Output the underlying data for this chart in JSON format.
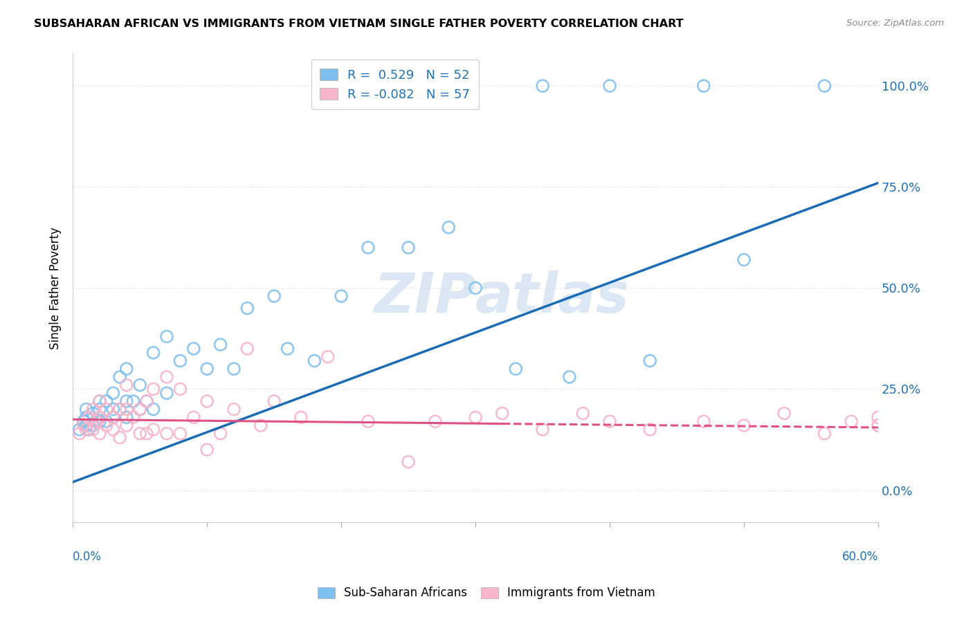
{
  "title": "SUBSAHARAN AFRICAN VS IMMIGRANTS FROM VIETNAM SINGLE FATHER POVERTY CORRELATION CHART",
  "source": "Source: ZipAtlas.com",
  "ylabel": "Single Father Poverty",
  "yticks": [
    "0.0%",
    "25.0%",
    "50.0%",
    "75.0%",
    "100.0%"
  ],
  "ytick_vals": [
    0.0,
    0.25,
    0.5,
    0.75,
    1.0
  ],
  "xmin": 0.0,
  "xmax": 0.6,
  "ymin": -0.08,
  "ymax": 1.08,
  "legend_entries": [
    {
      "label": "R =  0.529   N = 52",
      "color": "#7fbfef"
    },
    {
      "label": "R = -0.082   N = 57",
      "color": "#f8b4c8"
    }
  ],
  "legend_bottom": [
    "Sub-Saharan Africans",
    "Immigrants from Vietnam"
  ],
  "blue_color": "#7fbfef",
  "pink_color": "#f8b4c8",
  "blue_line_color": "#1a6bb5",
  "pink_line_color": "#e05080",
  "watermark_color": "#c5d8ee",
  "blue_scatter_x": [
    0.005,
    0.008,
    0.01,
    0.01,
    0.01,
    0.012,
    0.015,
    0.015,
    0.018,
    0.02,
    0.02,
    0.02,
    0.025,
    0.025,
    0.03,
    0.03,
    0.03,
    0.035,
    0.035,
    0.04,
    0.04,
    0.04,
    0.045,
    0.05,
    0.05,
    0.055,
    0.06,
    0.06,
    0.07,
    0.07,
    0.08,
    0.09,
    0.1,
    0.11,
    0.12,
    0.13,
    0.15,
    0.16,
    0.18,
    0.2,
    0.22,
    0.25,
    0.28,
    0.3,
    0.33,
    0.35,
    0.37,
    0.4,
    0.43,
    0.47,
    0.5,
    0.56
  ],
  "blue_scatter_y": [
    0.15,
    0.17,
    0.16,
    0.18,
    0.2,
    0.15,
    0.16,
    0.19,
    0.17,
    0.17,
    0.2,
    0.22,
    0.17,
    0.22,
    0.18,
    0.2,
    0.24,
    0.2,
    0.28,
    0.18,
    0.22,
    0.3,
    0.22,
    0.2,
    0.26,
    0.22,
    0.2,
    0.34,
    0.24,
    0.38,
    0.32,
    0.35,
    0.3,
    0.36,
    0.3,
    0.45,
    0.48,
    0.35,
    0.32,
    0.48,
    0.6,
    0.6,
    0.65,
    0.5,
    0.3,
    1.0,
    0.28,
    1.0,
    0.32,
    1.0,
    0.57,
    1.0
  ],
  "pink_scatter_x": [
    0.005,
    0.008,
    0.01,
    0.012,
    0.015,
    0.015,
    0.018,
    0.02,
    0.02,
    0.02,
    0.025,
    0.025,
    0.03,
    0.03,
    0.035,
    0.035,
    0.04,
    0.04,
    0.04,
    0.045,
    0.05,
    0.05,
    0.055,
    0.055,
    0.06,
    0.06,
    0.07,
    0.07,
    0.08,
    0.08,
    0.09,
    0.1,
    0.1,
    0.11,
    0.12,
    0.13,
    0.14,
    0.15,
    0.17,
    0.19,
    0.22,
    0.25,
    0.27,
    0.3,
    0.32,
    0.35,
    0.38,
    0.4,
    0.43,
    0.47,
    0.5,
    0.53,
    0.56,
    0.58,
    0.6,
    0.6,
    0.6
  ],
  "pink_scatter_y": [
    0.14,
    0.16,
    0.15,
    0.18,
    0.15,
    0.2,
    0.17,
    0.14,
    0.18,
    0.22,
    0.16,
    0.2,
    0.15,
    0.18,
    0.13,
    0.2,
    0.16,
    0.2,
    0.26,
    0.18,
    0.14,
    0.2,
    0.14,
    0.22,
    0.15,
    0.25,
    0.14,
    0.28,
    0.14,
    0.25,
    0.18,
    0.1,
    0.22,
    0.14,
    0.2,
    0.35,
    0.16,
    0.22,
    0.18,
    0.33,
    0.17,
    0.07,
    0.17,
    0.18,
    0.19,
    0.15,
    0.19,
    0.17,
    0.15,
    0.17,
    0.16,
    0.19,
    0.14,
    0.17,
    0.16,
    0.18,
    0.16
  ],
  "blue_line_x0": 0.0,
  "blue_line_y0": 0.02,
  "blue_line_x1": 0.6,
  "blue_line_y1": 0.76,
  "pink_line_x0": 0.0,
  "pink_line_y0": 0.175,
  "pink_line_x1": 0.6,
  "pink_line_y1": 0.155,
  "pink_line_solid_end": 0.32
}
